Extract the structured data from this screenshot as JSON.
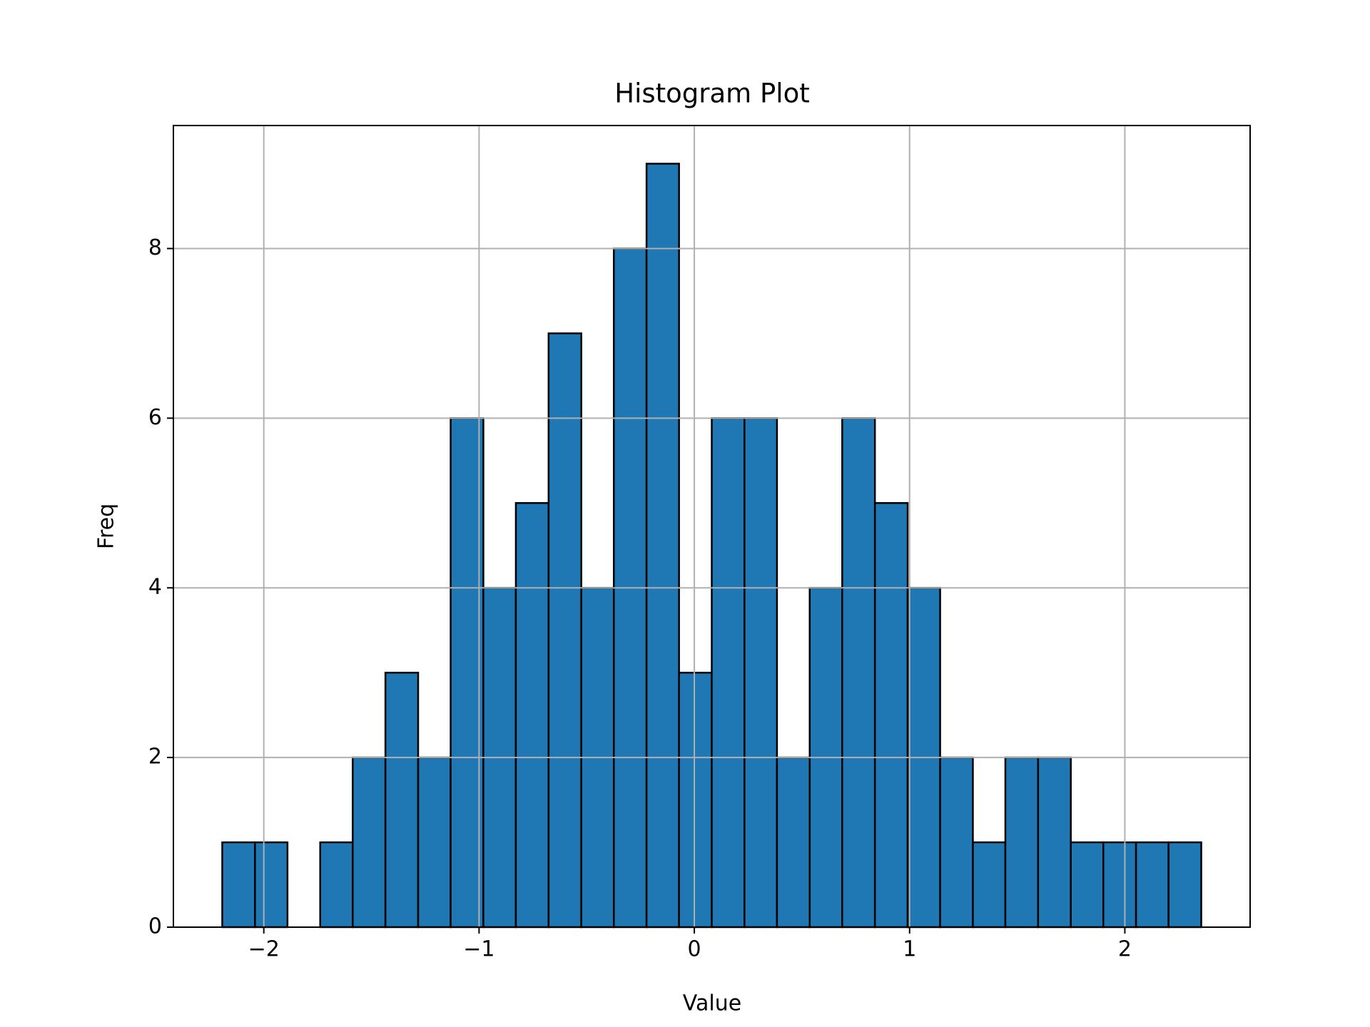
{
  "chart_data": {
    "type": "histogram",
    "title": "Histogram Plot",
    "x_label": "Value",
    "y_label": "Freq",
    "bins": [
      -2.193,
      -2.041,
      -1.89,
      -1.738,
      -1.587,
      -1.435,
      -1.283,
      -1.132,
      -0.98,
      -0.829,
      -0.677,
      -0.525,
      -0.374,
      -0.222,
      -0.071,
      0.081,
      0.233,
      0.384,
      0.536,
      0.687,
      0.839,
      0.991,
      1.142,
      1.294,
      1.445,
      1.597,
      1.749,
      1.9,
      2.052,
      2.203,
      2.355
    ],
    "values": [
      1,
      1,
      0,
      1,
      2,
      3,
      2,
      6,
      4,
      5,
      7,
      4,
      8,
      9,
      3,
      6,
      6,
      2,
      4,
      6,
      5,
      4,
      2,
      1,
      2,
      2,
      1,
      1,
      1,
      1
    ],
    "color": "#1f77b4",
    "edgecolor": "#000000",
    "xlim": [
      -2.42,
      2.582
    ],
    "ylim": [
      0,
      9.45
    ],
    "xticks": [
      {
        "value": -2,
        "label": "−2"
      },
      {
        "value": -1,
        "label": "−1"
      },
      0,
      1,
      2
    ],
    "yticks": [
      0,
      2,
      4,
      6,
      8
    ],
    "grid": true
  }
}
